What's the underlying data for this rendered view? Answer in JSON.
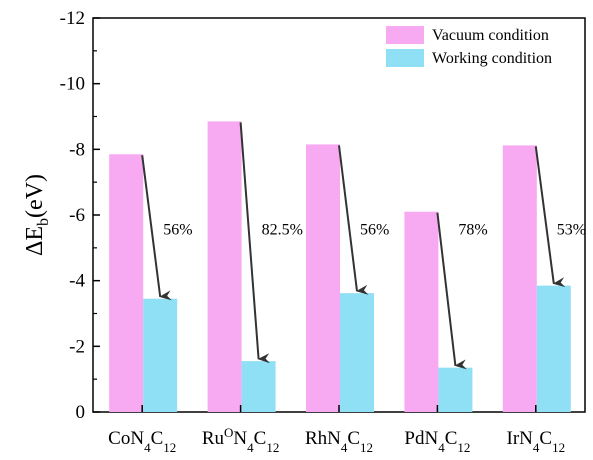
{
  "chart_data": {
    "type": "bar",
    "title": "",
    "xlabel": "",
    "ylabel": {
      "main": "ΔE",
      "sub": "b",
      "rest": "(eV)"
    },
    "ylim": [
      0,
      -12
    ],
    "yticks": [
      0,
      -2,
      -4,
      -6,
      -8,
      -10,
      -12
    ],
    "ytick_labels": [
      "0",
      "-2",
      "-4",
      "-6",
      "-8",
      "-10",
      "-12"
    ],
    "categories": [
      {
        "parts": [
          [
            "Co",
            ""
          ],
          [
            "N",
            ""
          ],
          [
            "4",
            "sub"
          ],
          [
            "C",
            ""
          ],
          [
            "12",
            "sub"
          ]
        ]
      },
      {
        "parts": [
          [
            "Ru",
            ""
          ],
          [
            "O",
            "sup"
          ],
          [
            "N",
            ""
          ],
          [
            "4",
            "sub"
          ],
          [
            "C",
            ""
          ],
          [
            "12",
            "sub"
          ]
        ]
      },
      {
        "parts": [
          [
            "Rh",
            ""
          ],
          [
            "N",
            ""
          ],
          [
            "4",
            "sub"
          ],
          [
            "C",
            ""
          ],
          [
            "12",
            "sub"
          ]
        ]
      },
      {
        "parts": [
          [
            "Pd",
            ""
          ],
          [
            "N",
            ""
          ],
          [
            "4",
            "sub"
          ],
          [
            "C",
            ""
          ],
          [
            "12",
            "sub"
          ]
        ]
      },
      {
        "parts": [
          [
            "Ir",
            ""
          ],
          [
            "N",
            ""
          ],
          [
            "4",
            "sub"
          ],
          [
            "C",
            ""
          ],
          [
            "12",
            "sub"
          ]
        ]
      }
    ],
    "series": [
      {
        "name": "Vacuum condition",
        "color": "#f7a9f2",
        "values": [
          -7.85,
          -8.85,
          -8.15,
          -6.1,
          -8.12
        ]
      },
      {
        "name": "Working condition",
        "color": "#8fdff5",
        "values": [
          -3.45,
          -1.55,
          -3.62,
          -1.35,
          -3.85
        ]
      }
    ],
    "annotations": [
      "56%",
      "82.5%",
      "56%",
      "78%",
      "53%"
    ],
    "legend_position": "top-right",
    "grid": false
  }
}
